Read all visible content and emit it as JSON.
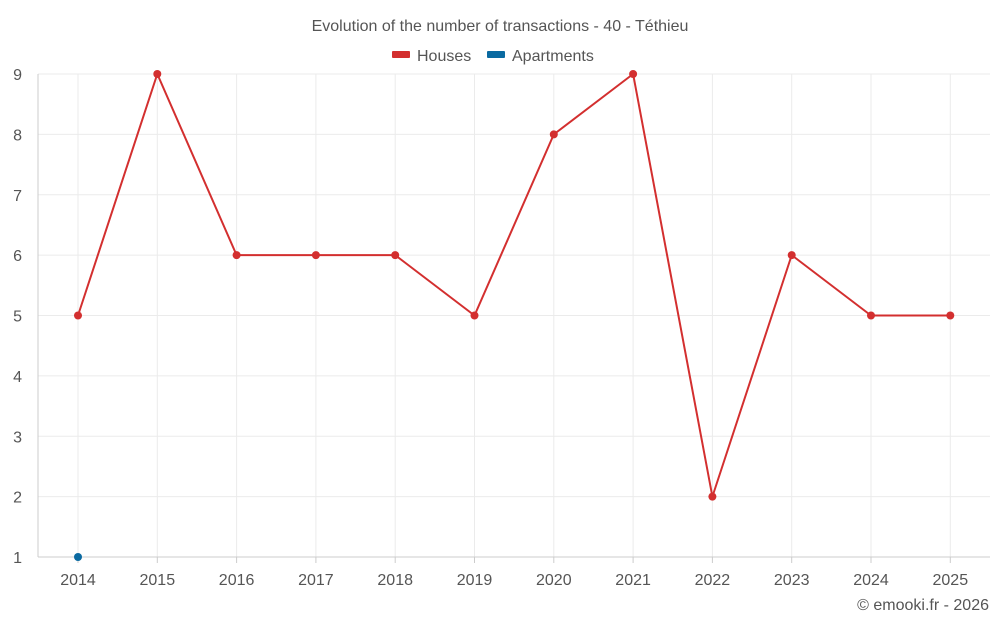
{
  "chart_data": {
    "type": "line",
    "title": "Evolution of the number of transactions - 40 - Téthieu",
    "categories": [
      "2014",
      "2015",
      "2016",
      "2017",
      "2018",
      "2019",
      "2020",
      "2021",
      "2022",
      "2023",
      "2024",
      "2025"
    ],
    "ylim": [
      1,
      9
    ],
    "yticks": [
      1,
      2,
      3,
      4,
      5,
      6,
      7,
      8,
      9
    ],
    "grid": true,
    "legend_position": "top-center",
    "series": [
      {
        "name": "Houses",
        "color": "#d32f2f",
        "values": [
          5,
          9,
          6,
          6,
          6,
          5,
          8,
          9,
          2,
          6,
          5,
          5
        ]
      },
      {
        "name": "Apartments",
        "color": "#0a6aa1",
        "values": [
          1,
          null,
          null,
          null,
          null,
          null,
          null,
          null,
          null,
          null,
          null,
          null
        ]
      }
    ],
    "credit": "© emooki.fr - 2026"
  }
}
